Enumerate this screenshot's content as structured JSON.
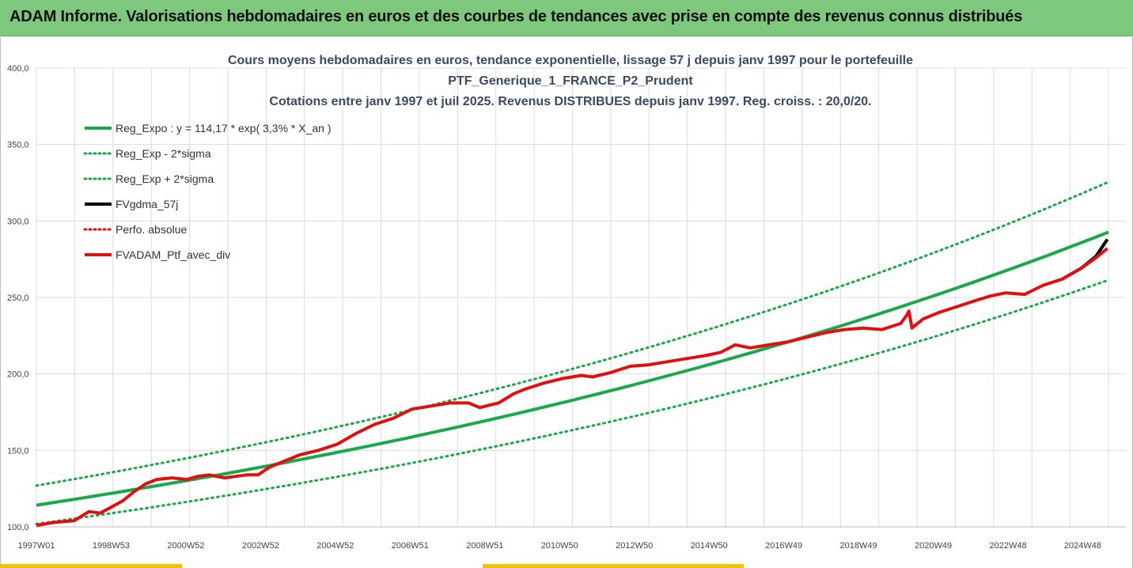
{
  "header": {
    "title": "ADAM Informe. Valorisations hebdomadaires en euros et des courbes de tendances avec prise en compte des revenus connus distribués"
  },
  "colors": {
    "header_bg": "#7dc87d",
    "trend": "#1aa84a",
    "band": "#1aa84a",
    "smooth": "#000000",
    "perf": "#e01010",
    "ptf": "#e01010"
  },
  "chart_data": {
    "type": "line",
    "title_lines": [
      "Cours moyens hebdomadaires  en euros, tendance exponentielle, lissage 57 j depuis janv 1997 pour le portefeuille",
      "PTF_Generique_1_FRANCE_P2_Prudent",
      "Cotations  entre janv 1997 et juil 2025. Revenus DISTRIBUES depuis janv 1997. Reg. croiss. : 20,0/20."
    ],
    "x_ticks": [
      "1997W01",
      "1998W53",
      "2000W52",
      "2002W52",
      "2004W52",
      "2006W51",
      "2008W51",
      "2010W50",
      "2012W50",
      "2014W50",
      "2016W49",
      "2018W49",
      "2020W49",
      "2022W48",
      "2024W48"
    ],
    "x_range": [
      "1997W01",
      "2025W28"
    ],
    "y_ticks": [
      "100,0",
      "150,0",
      "200,0",
      "250,0",
      "300,0",
      "350,0",
      "400,0"
    ],
    "ylim": [
      100,
      400
    ],
    "grid": true,
    "legend_position": "top-left",
    "legend": [
      {
        "label": "Reg_Expo : y = 114,17 * exp( 3,3% *  X_an )",
        "style": "solid-thick",
        "color": "#1aa84a"
      },
      {
        "label": "Reg_Exp - 2*sigma",
        "style": "dotted",
        "color": "#1aa84a"
      },
      {
        "label": "Reg_Exp + 2*sigma",
        "style": "dotted",
        "color": "#1aa84a"
      },
      {
        "label": "FVgdma_57j",
        "style": "solid-thick",
        "color": "#000000"
      },
      {
        "label": "Perfo. absolue",
        "style": "dotted",
        "color": "#e01010"
      },
      {
        "label": "FVADAM_Ptf_avec_div",
        "style": "solid-thick",
        "color": "#e01010"
      }
    ],
    "regression": {
      "a": 114.17,
      "rate": 0.033,
      "start_year": 1997.0,
      "end_year": 2025.53,
      "lower_factor": 0.893,
      "upper_factor": 1.112
    },
    "series": [
      {
        "name": "FVADAM_Ptf_avec_div",
        "x_year": [
          1997.0,
          1997.5,
          1998.0,
          1998.4,
          1998.7,
          1999.0,
          1999.3,
          1999.6,
          1999.9,
          2000.2,
          2000.6,
          2001.0,
          2001.3,
          2001.6,
          2002.0,
          2002.3,
          2002.6,
          2002.9,
          2003.2,
          2003.6,
          2004.0,
          2004.5,
          2005.0,
          2005.5,
          2006.0,
          2006.5,
          2007.0,
          2007.5,
          2008.0,
          2008.5,
          2008.8,
          2009.3,
          2009.7,
          2010.0,
          2010.5,
          2011.0,
          2011.5,
          2011.8,
          2012.3,
          2012.8,
          2013.3,
          2013.8,
          2014.3,
          2014.8,
          2015.2,
          2015.6,
          2016.0,
          2016.5,
          2017.0,
          2017.5,
          2018.0,
          2018.5,
          2019.0,
          2019.5,
          2020.0,
          2020.15,
          2020.22,
          2020.3,
          2020.6,
          2021.0,
          2021.5,
          2022.0,
          2022.4,
          2022.8,
          2023.3,
          2023.8,
          2024.3,
          2024.8,
          2025.2,
          2025.5
        ],
        "y": [
          101,
          103,
          104,
          110,
          109,
          113,
          117,
          123,
          128,
          131,
          132,
          131,
          133,
          134,
          132,
          133,
          134,
          134,
          139,
          143,
          147,
          150,
          154,
          161,
          167,
          171,
          177,
          179,
          181,
          181,
          178,
          181,
          187,
          190,
          194,
          197,
          199,
          198,
          201,
          205,
          206,
          208,
          210,
          212,
          214,
          219,
          217,
          219,
          221,
          224,
          227,
          229,
          230,
          229,
          233,
          238,
          241,
          230,
          236,
          240,
          244,
          248,
          251,
          253,
          252,
          258,
          262,
          269,
          276,
          282
        ]
      },
      {
        "name": "FVgdma_57j",
        "x_year": [
          2024.3,
          2024.8,
          2025.2,
          2025.5
        ],
        "y": [
          262,
          269,
          277,
          288
        ]
      }
    ]
  }
}
